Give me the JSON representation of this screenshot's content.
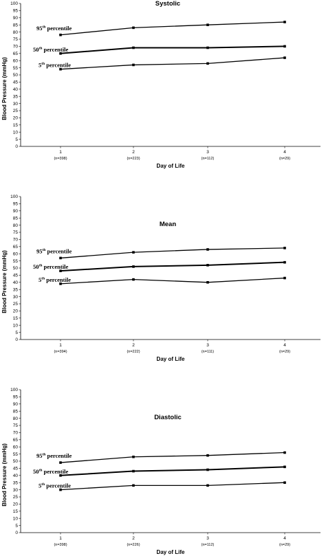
{
  "chart_data": [
    {
      "type": "line",
      "title": "Systolic",
      "xlabel": "Day of Life",
      "ylabel": "Blood Pressure (mmHg)",
      "ylim": [
        0,
        100
      ],
      "yticks": [
        "0",
        "5",
        "10",
        "15",
        "20",
        "25",
        "30",
        "35",
        "40",
        "45",
        "50",
        "55",
        "60",
        "65",
        "70",
        "75",
        "80",
        "85",
        "90",
        "95",
        "100"
      ],
      "categories": [
        "1",
        "2",
        "3",
        "4"
      ],
      "category_notes": [
        "(n=398)",
        "(n=223)",
        "(n=112)",
        "(n=29)"
      ],
      "series": [
        {
          "name": "95th percentile",
          "label_main": "95",
          "label_sup": "th",
          "label_rest": " percentile",
          "values": [
            78,
            83,
            85,
            87
          ]
        },
        {
          "name": "50th percentile",
          "label_main": "50",
          "label_sup": "th",
          "label_rest": " percentile",
          "values": [
            65,
            69,
            69,
            70
          ]
        },
        {
          "name": "5th percentile",
          "label_main": "5",
          "label_sup": "th",
          "label_rest": " percentile",
          "values": [
            54,
            57,
            58,
            62
          ]
        }
      ]
    },
    {
      "type": "line",
      "title": "Mean",
      "xlabel": "Day of Life",
      "ylabel": "Blood Pressure (mmHg)",
      "ylim": [
        0,
        100
      ],
      "yticks": [
        "0",
        "5",
        "10",
        "15",
        "20",
        "25",
        "30",
        "35",
        "40",
        "45",
        "50",
        "55",
        "60",
        "65",
        "70",
        "75",
        "80",
        "85",
        "90",
        "95",
        "100"
      ],
      "categories": [
        "1",
        "2",
        "3",
        "4"
      ],
      "category_notes": [
        "(n=394)",
        "(n=222)",
        "(n=111)",
        "(n=29)"
      ],
      "series": [
        {
          "name": "95th percentile",
          "label_main": "95",
          "label_sup": "th",
          "label_rest": " percentile",
          "values": [
            57,
            61,
            63,
            64
          ]
        },
        {
          "name": "50th percentile",
          "label_main": "50",
          "label_sup": "th",
          "label_rest": " percentile",
          "values": [
            48,
            51,
            52,
            54
          ]
        },
        {
          "name": "5th percentile",
          "label_main": "5",
          "label_sup": "th",
          "label_rest": " percentile",
          "values": [
            39,
            42,
            40,
            43
          ]
        }
      ]
    },
    {
      "type": "line",
      "title": "Diastolic",
      "xlabel": "Day of Life",
      "ylabel": "Blood Pressure (mmHg)",
      "ylim": [
        0,
        100
      ],
      "yticks": [
        "0",
        "5",
        "10",
        "15",
        "20",
        "25",
        "30",
        "35",
        "40",
        "45",
        "50",
        "55",
        "60",
        "65",
        "70",
        "75",
        "80",
        "85",
        "90",
        "95",
        "100"
      ],
      "categories": [
        "1",
        "2",
        "3",
        "4"
      ],
      "category_notes": [
        "(n=398)",
        "(n=226)",
        "(n=112)",
        "(n=29)"
      ],
      "series": [
        {
          "name": "95th percentile",
          "label_main": "95",
          "label_sup": "th",
          "label_rest": " percentile",
          "values": [
            49,
            53,
            54,
            56
          ]
        },
        {
          "name": "50th percentile",
          "label_main": "50",
          "label_sup": "th",
          "label_rest": " percentile",
          "values": [
            40,
            43,
            44,
            46
          ]
        },
        {
          "name": "5th percentile",
          "label_main": "5",
          "label_sup": "th",
          "label_rest": " percentile",
          "values": [
            30,
            33,
            33,
            35
          ]
        }
      ]
    }
  ]
}
